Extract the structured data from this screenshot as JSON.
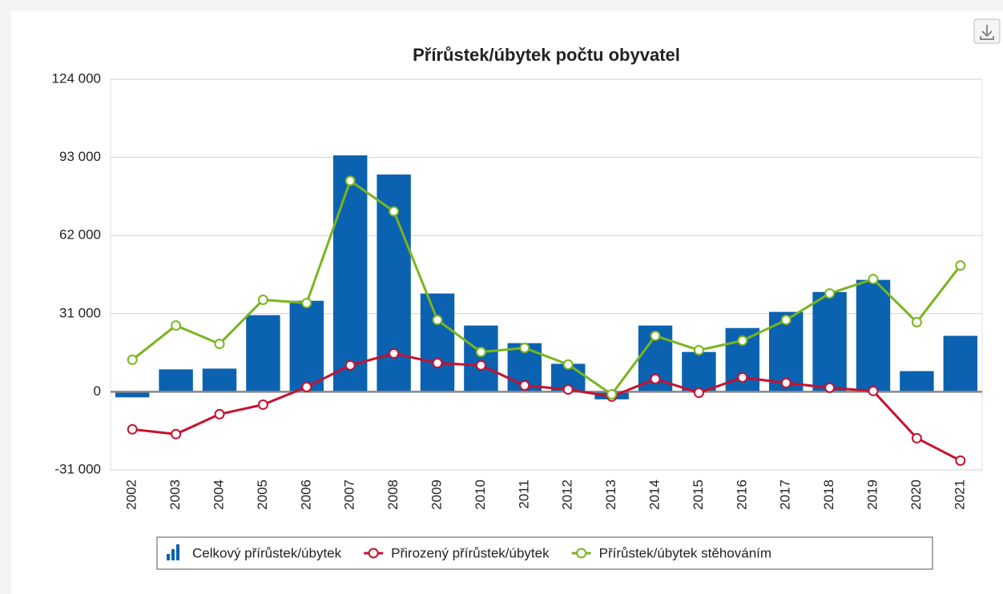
{
  "chart_data": {
    "type": "bar_line",
    "title": "Přírůstek/úbytek počtu obyvatel",
    "categories": [
      "2002",
      "2003",
      "2004",
      "2005",
      "2006",
      "2007",
      "2008",
      "2009",
      "2010",
      "2011",
      "2012",
      "2013",
      "2014",
      "2015",
      "2016",
      "2017",
      "2018",
      "2019",
      "2020",
      "2021"
    ],
    "series": [
      {
        "name": "Celkový přírůstek/úbytek",
        "type": "bar",
        "color": "#0b62b1",
        "values": [
          -2200,
          8900,
          9200,
          30400,
          36100,
          93800,
          86200,
          39000,
          26300,
          19300,
          11100,
          -3000,
          26300,
          15800,
          25300,
          31700,
          39600,
          44400,
          8200,
          22200
        ]
      },
      {
        "name": "Přirozený přírůstek/úbytek",
        "type": "line",
        "color": "#c8102e",
        "values": [
          -14900,
          -16800,
          -8900,
          -5100,
          1900,
          10500,
          15200,
          11400,
          10500,
          2500,
          900,
          -1900,
          5100,
          -400,
          5700,
          3500,
          1600,
          300,
          -18400,
          -27300
        ]
      },
      {
        "name": "Přírůstek/úbytek stěhováním",
        "type": "line",
        "color": "#7ab51d",
        "values": [
          12700,
          26300,
          19000,
          36500,
          35200,
          83700,
          71600,
          28500,
          15800,
          17400,
          10800,
          -1000,
          22200,
          16500,
          20300,
          28500,
          39000,
          44700,
          27600,
          50100
        ]
      }
    ],
    "ylim": [
      -31000,
      124000
    ],
    "yticks": [
      {
        "value": -31000,
        "label": "-31 000"
      },
      0,
      {
        "value": 31000,
        "label": "31 000"
      },
      {
        "value": 62000,
        "label": "62 000"
      },
      {
        "value": 93000,
        "label": "93 000"
      },
      {
        "value": 124000,
        "label": "124 000"
      }
    ],
    "grid": true,
    "legend": "bottom"
  }
}
